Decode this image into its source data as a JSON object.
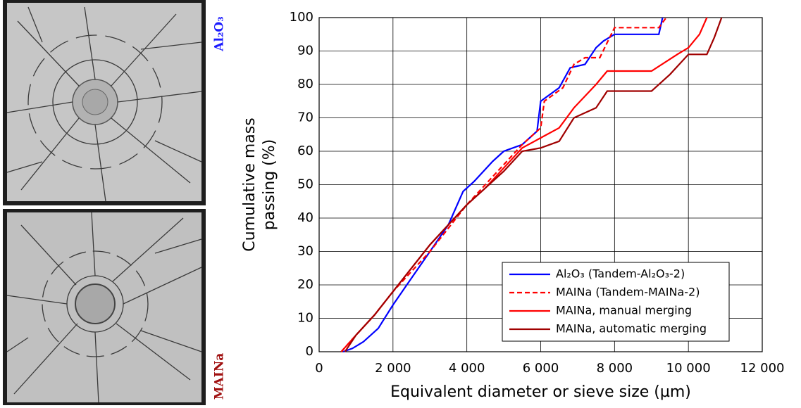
{
  "panels": [
    {
      "label": "Al₂O₃",
      "color": "#1a1aff"
    },
    {
      "label": "MAINa",
      "color": "#a01010"
    }
  ],
  "chart_data": {
    "type": "line",
    "ylabel_lines": [
      "Cumulative mass",
      "passing (%)"
    ],
    "xlabel": "Equivalent diameter or sieve size (µm)",
    "xlim": [
      0,
      12000
    ],
    "ylim": [
      0,
      100
    ],
    "xticks": [
      0,
      {
        "value": 2000,
        "label": "2 000"
      },
      {
        "value": 4000,
        "label": "4 000"
      },
      {
        "value": 6000,
        "label": "6 000"
      },
      {
        "value": 8000,
        "label": "8 000"
      },
      {
        "value": 10000,
        "label": "10 000"
      },
      {
        "value": 12000,
        "label": "12 000"
      }
    ],
    "yticks": [
      0,
      10,
      20,
      30,
      40,
      50,
      60,
      70,
      80,
      90,
      100
    ],
    "grid": true,
    "legend": "lower right",
    "series": [
      {
        "name": "Al₂O₃ (Tandem-Al₂O₃-2)",
        "color": "#0000ff",
        "linestyle": "solid",
        "x": [
          650,
          900,
          1200,
          1600,
          2000,
          2500,
          3000,
          3500,
          3900,
          4200,
          4700,
          5000,
          5500,
          5900,
          6000,
          6500,
          6800,
          7200,
          7500,
          7700,
          8000,
          9200,
          9300
        ],
        "values": [
          0,
          1,
          3,
          7,
          14,
          22,
          30,
          38,
          48,
          51,
          57,
          60,
          62,
          66,
          75,
          79,
          85,
          86,
          91,
          93,
          95,
          95,
          100
        ]
      },
      {
        "name": "MAINa (Tandem-MAINa-2)",
        "color": "#ff0000",
        "linestyle": "dashed",
        "x": [
          600,
          1000,
          1500,
          2000,
          2500,
          3000,
          3500,
          4000,
          4500,
          5000,
          5500,
          6000,
          6100,
          6600,
          6900,
          7200,
          7600,
          8000,
          9200,
          9400
        ],
        "values": [
          0,
          5,
          11,
          18,
          24,
          30,
          37,
          44,
          50,
          56,
          62,
          67,
          75,
          79,
          86,
          88,
          88,
          97,
          97,
          100
        ]
      },
      {
        "name": "MAINa, manual merging",
        "color": "#ff0000",
        "linestyle": "solid",
        "x": [
          600,
          1000,
          1500,
          2000,
          2500,
          3000,
          3500,
          4000,
          4500,
          5000,
          5500,
          6000,
          6500,
          6900,
          7500,
          7800,
          9000,
          9700,
          10000,
          10300,
          10500
        ],
        "values": [
          0,
          5,
          11,
          18,
          25,
          32,
          38,
          44,
          49,
          55,
          61,
          64,
          67,
          73,
          80,
          84,
          84,
          89,
          91,
          95,
          100
        ]
      },
      {
        "name": "MAINa, automatic merging",
        "color": "#a00000",
        "linestyle": "solid",
        "x": [
          700,
          1000,
          1500,
          2000,
          2500,
          3000,
          3500,
          4000,
          4500,
          5000,
          5500,
          6000,
          6500,
          6900,
          7500,
          7800,
          9000,
          9500,
          10000,
          10500,
          10700,
          10900
        ],
        "values": [
          0,
          5,
          11,
          18,
          25,
          32,
          38,
          44,
          49,
          54,
          60,
          61,
          63,
          70,
          73,
          78,
          78,
          83,
          89,
          89,
          94,
          100
        ]
      }
    ]
  }
}
